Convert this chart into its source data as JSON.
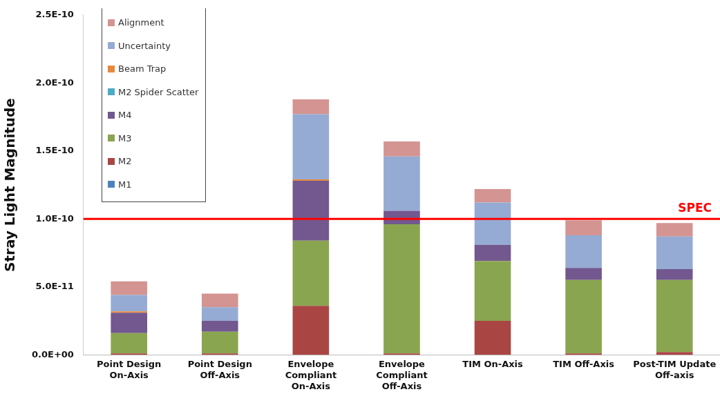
{
  "chart_data": {
    "type": "bar",
    "stacked": true,
    "ylabel": "Stray Light Magnitude",
    "categories": [
      "Point Design On-Axis",
      "Point Design Off-Axis",
      "Envelope Compliant On-Axis",
      "Envelope Compliant Off-Axis",
      "TIM On-Axis",
      "TIM Off-Axis",
      "Post-TIM Update Off-axis"
    ],
    "series": [
      {
        "name": "M1",
        "color": "#4f81bd",
        "values": [
          0,
          0,
          0,
          0,
          0,
          0,
          0
        ]
      },
      {
        "name": "M2",
        "color": "#a94644",
        "values": [
          1e-12,
          1e-12,
          3.6e-11,
          1e-12,
          2.5e-11,
          1e-12,
          2e-12
        ]
      },
      {
        "name": "M3",
        "color": "#8aa54f",
        "values": [
          1.5e-11,
          1.6e-11,
          4.8e-11,
          9.5e-11,
          4.4e-11,
          5.4e-11,
          5.3e-11
        ]
      },
      {
        "name": "M4",
        "color": "#72588e",
        "values": [
          1.5e-11,
          8e-12,
          4.4e-11,
          1e-11,
          1.2e-11,
          9e-12,
          8e-12
        ]
      },
      {
        "name": "M2 Spider Scatter",
        "color": "#4bacc6",
        "values": [
          0,
          0,
          0,
          0,
          0,
          0,
          0
        ]
      },
      {
        "name": "Beam Trap",
        "color": "#e8883a",
        "values": [
          1e-12,
          0,
          1e-12,
          0,
          0,
          0,
          0
        ]
      },
      {
        "name": "Uncertainty",
        "color": "#95abd3",
        "values": [
          1.2e-11,
          1e-11,
          4.8e-11,
          4e-11,
          3.1e-11,
          2.4e-11,
          2.4e-11
        ]
      },
      {
        "name": "Alignment",
        "color": "#d39492",
        "values": [
          1e-11,
          1e-11,
          1.1e-11,
          1.1e-11,
          1e-11,
          1.1e-11,
          1e-11
        ]
      }
    ],
    "ylim": [
      0,
      2.5e-10
    ],
    "yticks": [
      {
        "value": 0,
        "label": "0.0E+00"
      },
      {
        "value": 5e-11,
        "label": "5.0E-11"
      },
      {
        "value": 1e-10,
        "label": "1.0E-10"
      },
      {
        "value": 1.5e-10,
        "label": "1.5E-10"
      },
      {
        "value": 2e-10,
        "label": "2.0E-10"
      },
      {
        "value": 2.5e-10,
        "label": "2.5E-10"
      }
    ],
    "ref_lines": [
      {
        "axis": "y",
        "value": 1e-10,
        "label": "SPEC",
        "color": "#ff0000"
      }
    ],
    "grid": false,
    "legend": "top left"
  }
}
